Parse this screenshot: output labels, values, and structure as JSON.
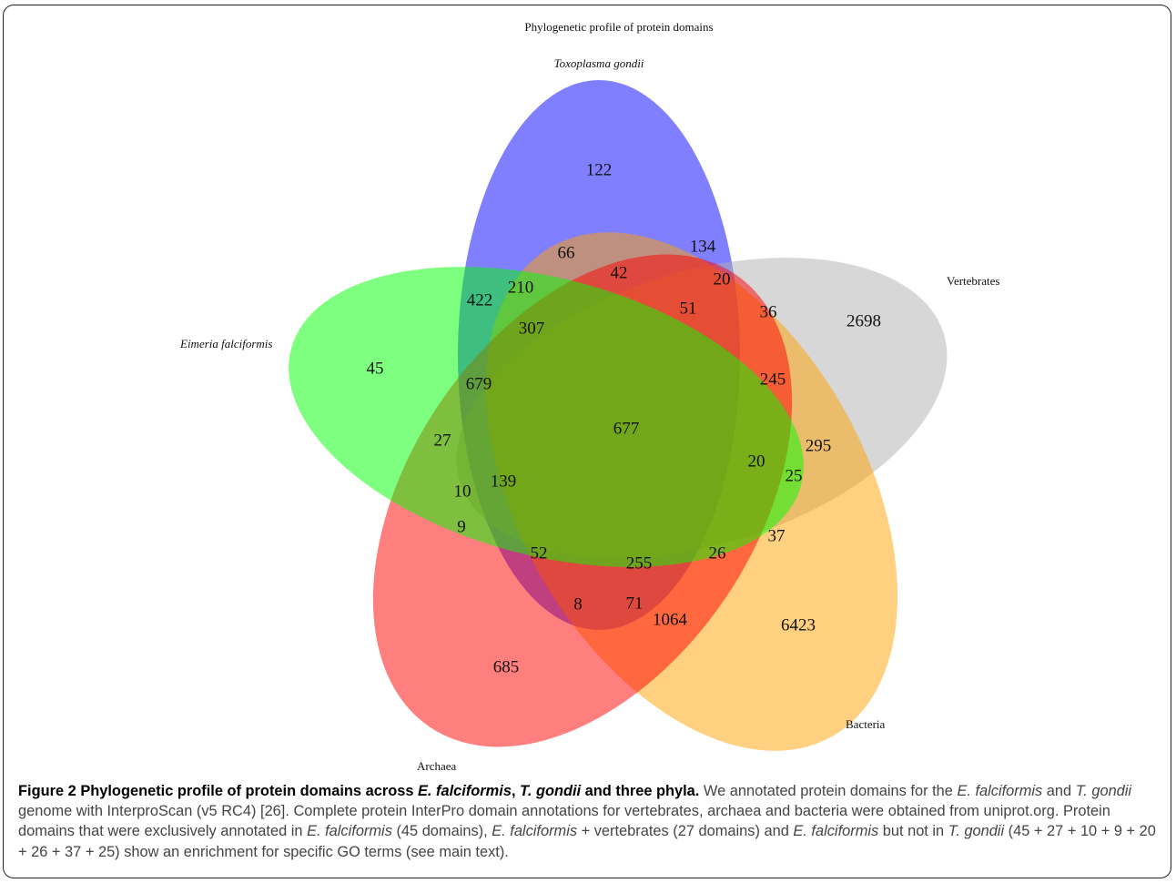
{
  "figure": {
    "title": "Phylogenetic profile of protein domains",
    "sets": [
      {
        "name": "Toxoplasma gondii",
        "italic": true,
        "color": "#0000ff"
      },
      {
        "name": "Vertebrates",
        "italic": false,
        "color": "#b0b0b0"
      },
      {
        "name": "Bacteria",
        "italic": false,
        "color": "#ffa100"
      },
      {
        "name": "Archaea",
        "italic": false,
        "color": "#ff0000"
      },
      {
        "name": "Eimeria falciformis",
        "italic": true,
        "color": "#00ff00"
      }
    ],
    "counts": [
      {
        "value": "122"
      },
      {
        "value": "134"
      },
      {
        "value": "66"
      },
      {
        "value": "42"
      },
      {
        "value": "20"
      },
      {
        "value": "422"
      },
      {
        "value": "210"
      },
      {
        "value": "51"
      },
      {
        "value": "36"
      },
      {
        "value": "2698"
      },
      {
        "value": "307"
      },
      {
        "value": "45"
      },
      {
        "value": "679"
      },
      {
        "value": "245"
      },
      {
        "value": "677"
      },
      {
        "value": "27"
      },
      {
        "value": "295"
      },
      {
        "value": "20"
      },
      {
        "value": "25"
      },
      {
        "value": "139"
      },
      {
        "value": "10"
      },
      {
        "value": "9"
      },
      {
        "value": "37"
      },
      {
        "value": "52"
      },
      {
        "value": "255"
      },
      {
        "value": "26"
      },
      {
        "value": "8"
      },
      {
        "value": "71"
      },
      {
        "value": "1064"
      },
      {
        "value": "6423"
      },
      {
        "value": "685"
      }
    ]
  },
  "caption": {
    "label": "Figure 2",
    "title_parts": [
      " Phylogenetic profile of protein domains across ",
      "E. falciformis",
      ", ",
      "T. gondii",
      " and three phyla."
    ],
    "body_parts": [
      " We annotated protein domains for the ",
      "E. falciformis",
      " and ",
      "T. gondii",
      " genome with InterproScan (v5 RC4) [26]. Complete protein InterPro domain annotations for vertebrates, archaea and bacteria were obtained from uniprot.org. Protein domains that were exclusively annotated in ",
      "E. falciformis",
      " (45 domains), ",
      "E. falciformis",
      " + vertebrates (27 domains) and ",
      "E. falciformis",
      " but not in ",
      "T. gondii",
      " (45 + 27 + 10 + 9 + 20 + 26 + 37 + 25) show an enrichment for specific GO terms (see main text)."
    ]
  }
}
